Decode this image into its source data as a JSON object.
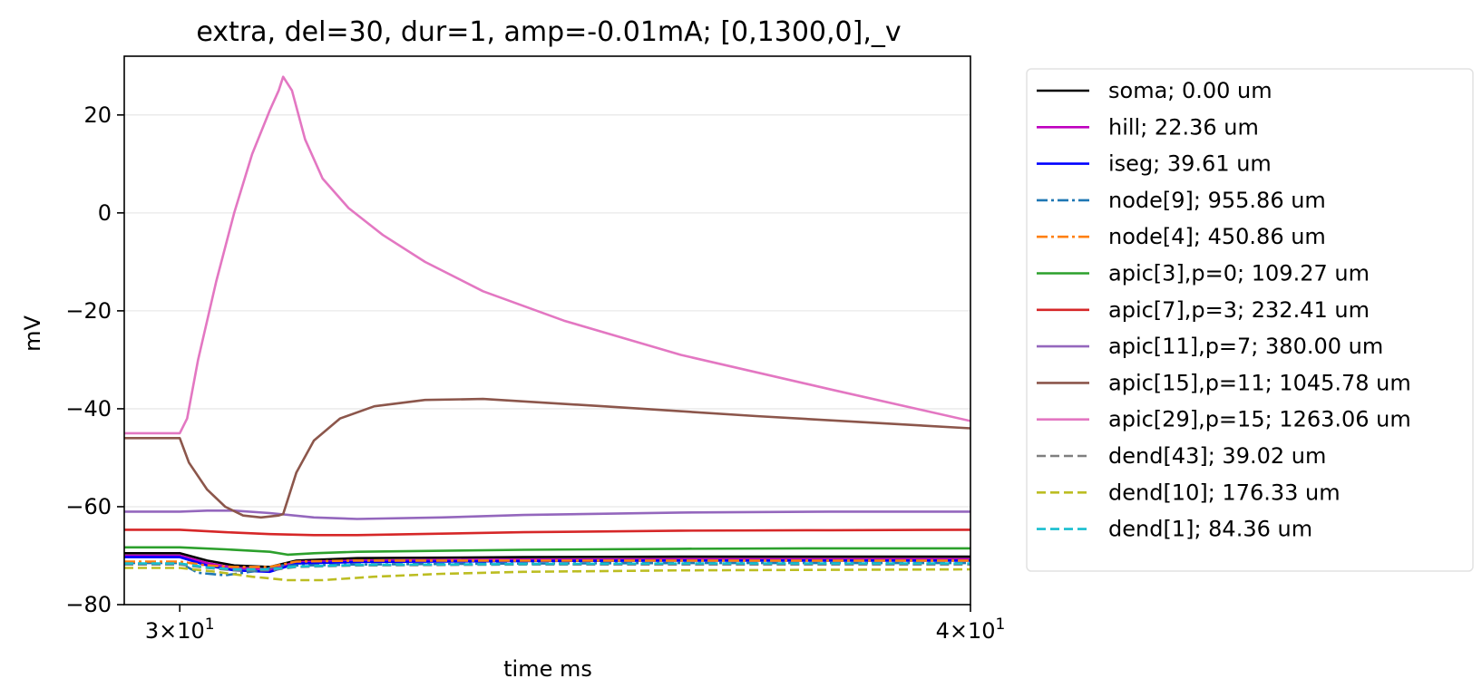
{
  "chart_data": {
    "type": "line",
    "title": "extra, del=30, dur=1, amp=-0.01mA; [0,1300,0],_v",
    "xlabel": "time ms",
    "ylabel": "mV",
    "xscale": "log",
    "xlim": [
      29.4,
      40
    ],
    "ylim": [
      -80,
      32
    ],
    "yticks": [
      20,
      0,
      -20,
      -40,
      -60,
      -80
    ],
    "ytick_labels": [
      "20",
      "0",
      "−20",
      "−40",
      "−60",
      "−80"
    ],
    "xticks": [
      30,
      40
    ],
    "xtick_labels": [
      {
        "base": "3×10",
        "exp": "1"
      },
      {
        "base": "4×10",
        "exp": "1"
      }
    ],
    "grid": "horizontal",
    "legend_position": "outside-right",
    "series": [
      {
        "name": "soma; 0.00 um",
        "color": "#000000",
        "dash": "solid",
        "x": [
          29.4,
          30.0,
          30.3,
          30.6,
          31.0,
          31.3,
          32,
          34,
          36,
          38,
          40
        ],
        "y": [
          -69.5,
          -69.5,
          -71.0,
          -72.0,
          -72.3,
          -71.0,
          -70.5,
          -70.3,
          -70.2,
          -70.2,
          -70.2
        ]
      },
      {
        "name": "hill; 22.36 um",
        "color": "#bf00bf",
        "dash": "solid",
        "x": [
          29.4,
          30.0,
          30.3,
          30.6,
          31.0,
          31.3,
          32,
          34,
          36,
          38,
          40
        ],
        "y": [
          -70.0,
          -70.0,
          -71.5,
          -72.5,
          -72.8,
          -71.3,
          -71.0,
          -70.8,
          -70.7,
          -70.7,
          -70.7
        ]
      },
      {
        "name": "iseg; 39.61 um",
        "color": "#0000ff",
        "dash": "solid",
        "x": [
          29.4,
          30.0,
          30.3,
          30.6,
          31.0,
          31.3,
          32,
          34,
          36,
          38,
          40
        ],
        "y": [
          -70.3,
          -70.3,
          -72.0,
          -73.0,
          -73.3,
          -71.6,
          -71.3,
          -71.1,
          -71.0,
          -71.0,
          -71.0
        ]
      },
      {
        "name": "node[9]; 955.86 um",
        "color": "#1f77b4",
        "dash": "dashdot",
        "x": [
          29.4,
          30.0,
          30.2,
          30.5,
          30.9,
          31.1,
          31.4,
          32,
          34,
          36,
          40
        ],
        "y": [
          -71.5,
          -71.5,
          -73.5,
          -74.0,
          -73.0,
          -72.0,
          -72.0,
          -71.8,
          -71.6,
          -71.5,
          -71.5
        ]
      },
      {
        "name": "node[4]; 450.86 um",
        "color": "#ff7f0e",
        "dash": "dashdot",
        "x": [
          29.4,
          30.0,
          30.3,
          30.6,
          31.0,
          31.3,
          32,
          34,
          36,
          38,
          40
        ],
        "y": [
          -71.2,
          -71.2,
          -72.0,
          -72.3,
          -72.3,
          -71.2,
          -71.0,
          -71.0,
          -71.0,
          -71.0,
          -71.0
        ]
      },
      {
        "name": "apic[3],p=0; 109.27 um",
        "color": "#2ca02c",
        "dash": "solid",
        "x": [
          29.4,
          30.0,
          30.5,
          31.0,
          31.2,
          31.5,
          32,
          34,
          36,
          38,
          40
        ],
        "y": [
          -68.3,
          -68.3,
          -68.7,
          -69.2,
          -69.8,
          -69.5,
          -69.2,
          -68.8,
          -68.6,
          -68.5,
          -68.5
        ]
      },
      {
        "name": "apic[7],p=3; 232.41 um",
        "color": "#d62728",
        "dash": "solid",
        "x": [
          29.4,
          30.0,
          30.5,
          31.0,
          31.5,
          32,
          33,
          34,
          36,
          38,
          40
        ],
        "y": [
          -64.7,
          -64.7,
          -65.2,
          -65.6,
          -65.8,
          -65.8,
          -65.5,
          -65.2,
          -64.9,
          -64.8,
          -64.7
        ]
      },
      {
        "name": "apic[11],p=7; 380.00 um",
        "color": "#9467bd",
        "dash": "solid",
        "x": [
          29.4,
          30.0,
          30.3,
          30.6,
          31.0,
          31.5,
          32,
          33,
          34,
          36,
          38,
          40
        ],
        "y": [
          -61.0,
          -61.0,
          -60.8,
          -60.8,
          -61.3,
          -62.2,
          -62.5,
          -62.2,
          -61.7,
          -61.2,
          -61.0,
          -61.0
        ]
      },
      {
        "name": "apic[15],p=11; 1045.78 um",
        "color": "#8c564b",
        "dash": "solid",
        "x": [
          29.4,
          30.0,
          30.1,
          30.3,
          30.5,
          30.7,
          30.9,
          31.1,
          31.15,
          31.3,
          31.5,
          31.8,
          32.2,
          32.8,
          33.5,
          35,
          37,
          40
        ],
        "y": [
          -46.0,
          -46.0,
          -51.0,
          -56.5,
          -60.0,
          -61.8,
          -62.2,
          -61.8,
          -61.5,
          -53.0,
          -46.5,
          -42.0,
          -39.5,
          -38.2,
          -38.0,
          -39.5,
          -41.5,
          -44.0
        ]
      },
      {
        "name": "apic[29],p=15; 1263.06 um",
        "color": "#e377c2",
        "dash": "solid",
        "x": [
          29.4,
          30.0,
          30.08,
          30.2,
          30.4,
          30.6,
          30.8,
          31.0,
          31.1,
          31.15,
          31.25,
          31.4,
          31.6,
          31.9,
          32.3,
          32.8,
          33.5,
          34.5,
          36,
          38,
          40
        ],
        "y": [
          -45.0,
          -45.0,
          -42.0,
          -30.0,
          -14.0,
          0.0,
          12.0,
          21.0,
          25.0,
          27.8,
          25.0,
          15.0,
          7.0,
          1.0,
          -4.5,
          -10.0,
          -16.0,
          -22.0,
          -29.0,
          -36.0,
          -42.5
        ]
      },
      {
        "name": "dend[43]; 39.02 um",
        "color": "#7f7f7f",
        "dash": "dashed",
        "x": [
          29.4,
          30.0,
          30.3,
          30.6,
          31.0,
          31.3,
          32,
          34,
          36,
          40
        ],
        "y": [
          -71.8,
          -71.8,
          -72.5,
          -73.0,
          -73.0,
          -72.3,
          -72.0,
          -71.8,
          -71.8,
          -71.8
        ]
      },
      {
        "name": "dend[10]; 176.33 um",
        "color": "#bcbd22",
        "dash": "dashed",
        "x": [
          29.4,
          30.0,
          30.4,
          30.8,
          31.2,
          31.6,
          32.2,
          33,
          34,
          36,
          38,
          40
        ],
        "y": [
          -72.5,
          -72.5,
          -73.3,
          -74.3,
          -75.0,
          -75.0,
          -74.3,
          -73.7,
          -73.3,
          -73.0,
          -72.9,
          -72.8
        ]
      },
      {
        "name": "dend[1]; 84.36 um",
        "color": "#17becf",
        "dash": "dashed",
        "x": [
          29.4,
          30.0,
          30.3,
          30.6,
          31.0,
          31.3,
          32,
          34,
          36,
          40
        ],
        "y": [
          -71.6,
          -71.6,
          -72.4,
          -72.8,
          -72.8,
          -72.2,
          -71.9,
          -71.7,
          -71.6,
          -71.6
        ]
      }
    ]
  }
}
